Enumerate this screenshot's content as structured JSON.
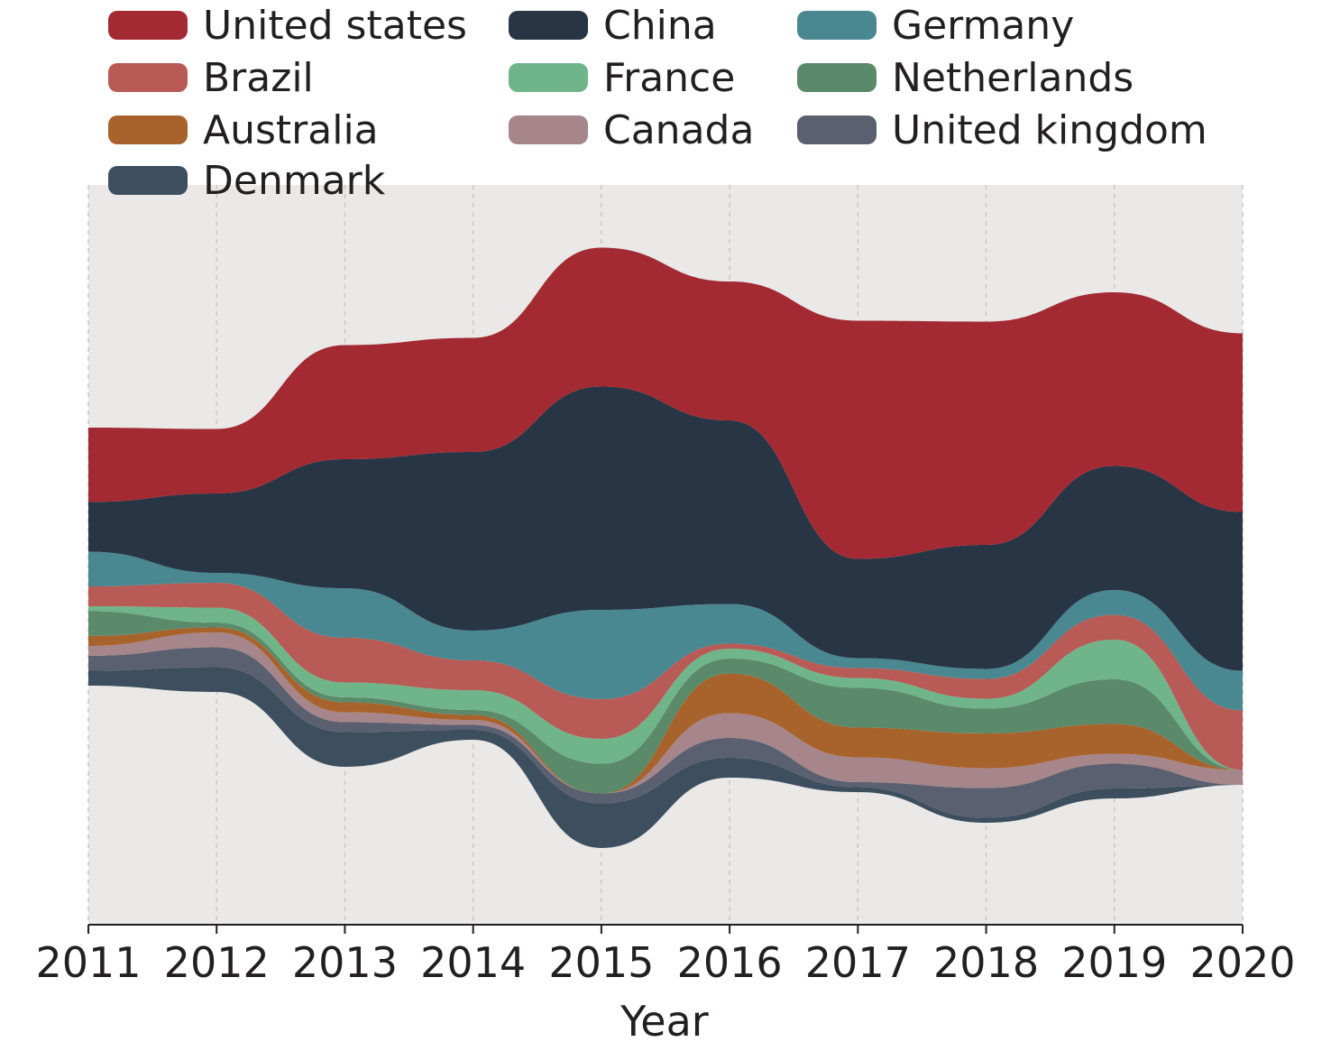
{
  "chart_data": {
    "type": "area",
    "subtype": "streamgraph",
    "xlabel": "Year",
    "x": [
      "2011",
      "2012",
      "2013",
      "2014",
      "2015",
      "2016",
      "2017",
      "2018",
      "2019",
      "2020"
    ],
    "grid": "vertical dashed",
    "legend_position": "top",
    "series": [
      {
        "name": "Denmark",
        "color": "#3d4e5e",
        "values": [
          3,
          5,
          7,
          2,
          9,
          4,
          1,
          1,
          2,
          0
        ]
      },
      {
        "name": "United kingdom",
        "color": "#5a6070",
        "values": [
          3,
          4,
          2,
          1,
          2,
          4,
          1,
          6,
          5,
          0
        ]
      },
      {
        "name": "Canada",
        "color": "#a6868a",
        "values": [
          2,
          3,
          2,
          1,
          0,
          5,
          5,
          4,
          2,
          3
        ]
      },
      {
        "name": "Australia",
        "color": "#a8632d",
        "values": [
          2,
          1,
          2,
          1,
          0,
          8,
          6,
          7,
          6,
          0
        ]
      },
      {
        "name": "Netherlands",
        "color": "#5a8a6a",
        "values": [
          5,
          1,
          1,
          1,
          6,
          3,
          8,
          5,
          9,
          0
        ]
      },
      {
        "name": "France",
        "color": "#70b48a",
        "values": [
          1,
          3,
          3,
          4,
          5,
          2,
          2,
          2,
          8,
          0
        ]
      },
      {
        "name": "Brazil",
        "color": "#b85a55",
        "values": [
          4,
          5,
          9,
          6,
          8,
          1,
          2,
          4,
          5,
          12
        ]
      },
      {
        "name": "Germany",
        "color": "#4a8891",
        "values": [
          7,
          2,
          10,
          6,
          18,
          8,
          2,
          2,
          5,
          8
        ]
      },
      {
        "name": "China",
        "color": "#283545",
        "values": [
          10,
          16,
          26,
          36,
          45,
          37,
          20,
          25,
          25,
          32
        ]
      },
      {
        "name": "United states",
        "color": "#a32a33",
        "values": [
          15,
          13,
          23,
          23,
          28,
          28,
          48,
          45,
          35,
          36
        ]
      }
    ],
    "legend_order": [
      "United states",
      "China",
      "Germany",
      "Brazil",
      "France",
      "Netherlands",
      "Australia",
      "Canada",
      "United kingdom",
      "Denmark"
    ]
  }
}
